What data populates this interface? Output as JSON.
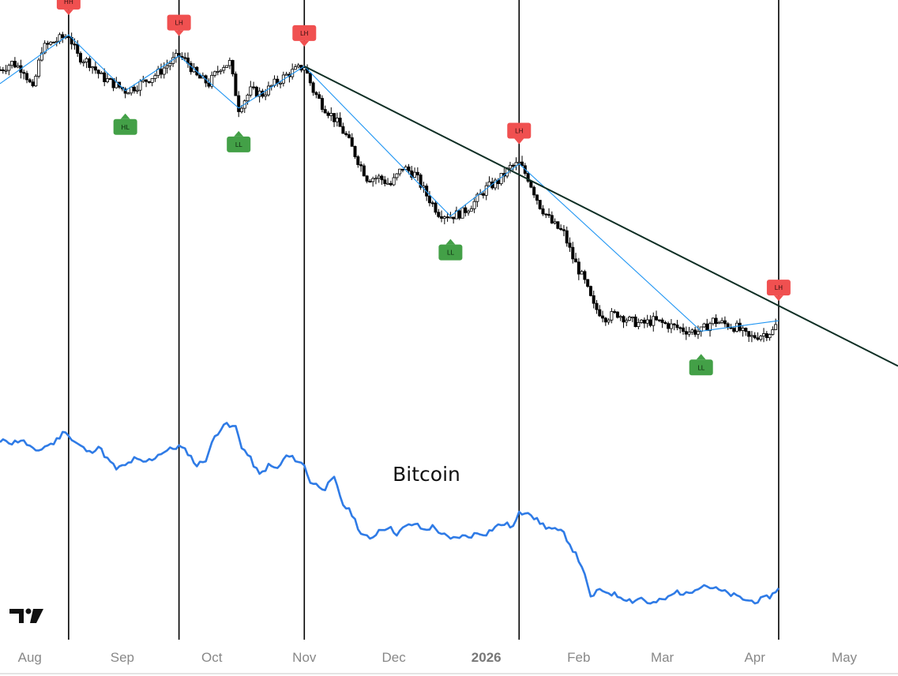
{
  "chart_data": {
    "type": "line",
    "x_axis": {
      "ticks": [
        {
          "label": "Aug",
          "date": "2025-08-01",
          "bold": false
        },
        {
          "label": "Sep",
          "date": "2025-09-01",
          "bold": false
        },
        {
          "label": "Oct",
          "date": "2025-10-01",
          "bold": false
        },
        {
          "label": "Nov",
          "date": "2025-11-01",
          "bold": false
        },
        {
          "label": "Dec",
          "date": "2025-12-01",
          "bold": false
        },
        {
          "label": "2026",
          "date": "2026-01-01",
          "bold": true
        },
        {
          "label": "Feb",
          "date": "2026-02-01",
          "bold": false
        },
        {
          "label": "Mar",
          "date": "2026-03-01",
          "bold": false
        },
        {
          "label": "Apr",
          "date": "2026-04-01",
          "bold": false
        },
        {
          "label": "May",
          "date": "2026-05-01",
          "bold": false
        }
      ],
      "range": [
        "2025-07-22",
        "2026-05-19"
      ]
    },
    "vertical_markers": [
      "2025-08-14",
      "2025-09-20",
      "2025-11-01",
      "2026-01-12",
      "2026-04-09"
    ],
    "upper_panel": {
      "candles_close": [
        [
          "2025-07-22",
          120
        ],
        [
          "2025-07-26",
          121
        ],
        [
          "2025-07-30",
          120
        ],
        [
          "2025-08-02",
          117
        ],
        [
          "2025-08-05",
          123
        ],
        [
          "2025-08-09",
          124
        ],
        [
          "2025-08-14",
          125
        ],
        [
          "2025-08-17",
          122
        ],
        [
          "2025-08-21",
          121
        ],
        [
          "2025-08-25",
          119
        ],
        [
          "2025-08-29",
          118
        ],
        [
          "2025-09-02",
          117
        ],
        [
          "2025-09-05",
          117.5
        ],
        [
          "2025-09-09",
          118.5
        ],
        [
          "2025-09-13",
          119.5
        ],
        [
          "2025-09-17",
          121
        ],
        [
          "2025-09-20",
          122
        ],
        [
          "2025-09-23",
          121
        ],
        [
          "2025-09-26",
          119
        ],
        [
          "2025-09-30",
          118
        ],
        [
          "2025-10-04",
          120.5
        ],
        [
          "2025-10-07",
          121
        ],
        [
          "2025-10-10",
          114.5
        ],
        [
          "2025-10-14",
          117
        ],
        [
          "2025-10-18",
          116.5
        ],
        [
          "2025-10-22",
          118
        ],
        [
          "2025-10-27",
          119.5
        ],
        [
          "2025-11-01",
          120.5
        ],
        [
          "2025-11-04",
          117
        ],
        [
          "2025-11-07",
          115
        ],
        [
          "2025-11-11",
          113
        ],
        [
          "2025-11-15",
          110.5
        ],
        [
          "2025-11-19",
          107
        ],
        [
          "2025-11-22",
          104.5
        ],
        [
          "2025-11-26",
          104.5
        ],
        [
          "2025-11-30",
          103.5
        ],
        [
          "2025-12-04",
          106
        ],
        [
          "2025-12-08",
          105
        ],
        [
          "2025-12-12",
          102
        ],
        [
          "2025-12-16",
          99.5
        ],
        [
          "2025-12-20",
          99
        ],
        [
          "2025-12-24",
          99.5
        ],
        [
          "2025-12-28",
          101
        ],
        [
          "2026-01-01",
          103
        ],
        [
          "2026-01-05",
          104
        ],
        [
          "2026-01-09",
          106
        ],
        [
          "2026-01-12",
          106.5
        ],
        [
          "2026-01-15",
          104.5
        ],
        [
          "2026-01-19",
          100.5
        ],
        [
          "2026-01-23",
          98
        ],
        [
          "2026-01-27",
          96.5
        ],
        [
          "2026-01-30",
          93
        ],
        [
          "2026-02-03",
          89.5
        ],
        [
          "2026-02-06",
          86
        ],
        [
          "2026-02-10",
          84.5
        ],
        [
          "2026-02-14",
          85
        ],
        [
          "2026-02-18",
          84
        ],
        [
          "2026-02-22",
          83.5
        ],
        [
          "2026-02-26",
          84
        ],
        [
          "2026-03-02",
          83.5
        ],
        [
          "2026-03-06",
          83
        ],
        [
          "2026-03-10",
          82.5
        ],
        [
          "2026-03-14",
          82.5
        ],
        [
          "2026-03-18",
          84
        ],
        [
          "2026-03-22",
          83.5
        ],
        [
          "2026-03-26",
          83
        ],
        [
          "2026-03-30",
          81.5
        ],
        [
          "2026-04-03",
          82
        ],
        [
          "2026-04-07",
          82.5
        ],
        [
          "2026-04-09",
          84
        ]
      ],
      "pivots": [
        {
          "label": "HH",
          "date": "2025-08-14",
          "value": 125,
          "kind": "high"
        },
        {
          "label": "HL",
          "date": "2025-09-02",
          "value": 117,
          "kind": "low"
        },
        {
          "label": "LH",
          "date": "2025-09-20",
          "value": 122,
          "kind": "high"
        },
        {
          "label": "LL",
          "date": "2025-10-10",
          "value": 114.5,
          "kind": "low"
        },
        {
          "label": "LH",
          "date": "2025-11-01",
          "value": 120.5,
          "kind": "high"
        },
        {
          "label": "LL",
          "date": "2025-12-20",
          "value": 99,
          "kind": "low"
        },
        {
          "label": "LH",
          "date": "2026-01-12",
          "value": 106.5,
          "kind": "high"
        },
        {
          "label": "LL",
          "date": "2026-03-14",
          "value": 82.5,
          "kind": "low"
        },
        {
          "label": "LH",
          "date": "2026-04-09",
          "value": 84,
          "kind": "high"
        }
      ],
      "trendline": {
        "from": [
          "2025-11-01",
          120.5
        ],
        "to": [
          "2026-05-19",
          77.5
        ]
      },
      "value_range": [
        72,
        130
      ]
    },
    "lower_panel": {
      "series_label": "Bitcoin",
      "points": [
        [
          "2025-07-22",
          116
        ],
        [
          "2025-07-24",
          117
        ],
        [
          "2025-07-26",
          116
        ],
        [
          "2025-07-29",
          117
        ],
        [
          "2025-08-01",
          115
        ],
        [
          "2025-08-03",
          113
        ],
        [
          "2025-08-06",
          115
        ],
        [
          "2025-08-09",
          116
        ],
        [
          "2025-08-11",
          118
        ],
        [
          "2025-08-13",
          120
        ],
        [
          "2025-08-15",
          117
        ],
        [
          "2025-08-18",
          115
        ],
        [
          "2025-08-21",
          113
        ],
        [
          "2025-08-24",
          115
        ],
        [
          "2025-08-27",
          111
        ],
        [
          "2025-08-30",
          108
        ],
        [
          "2025-09-02",
          109
        ],
        [
          "2025-09-05",
          111
        ],
        [
          "2025-09-08",
          110
        ],
        [
          "2025-09-11",
          111
        ],
        [
          "2025-09-14",
          113
        ],
        [
          "2025-09-17",
          114
        ],
        [
          "2025-09-20",
          115
        ],
        [
          "2025-09-23",
          113
        ],
        [
          "2025-09-26",
          109
        ],
        [
          "2025-09-29",
          111
        ],
        [
          "2025-10-02",
          118
        ],
        [
          "2025-10-05",
          122
        ],
        [
          "2025-10-07",
          121
        ],
        [
          "2025-10-09",
          121
        ],
        [
          "2025-10-11",
          115
        ],
        [
          "2025-10-14",
          111
        ],
        [
          "2025-10-17",
          106
        ],
        [
          "2025-10-20",
          109
        ],
        [
          "2025-10-23",
          108
        ],
        [
          "2025-10-26",
          112
        ],
        [
          "2025-10-29",
          111
        ],
        [
          "2025-11-01",
          109
        ],
        [
          "2025-11-03",
          104
        ],
        [
          "2025-11-05",
          103
        ],
        [
          "2025-11-08",
          102
        ],
        [
          "2025-11-11",
          105
        ],
        [
          "2025-11-14",
          97
        ],
        [
          "2025-11-17",
          94
        ],
        [
          "2025-11-20",
          88
        ],
        [
          "2025-11-23",
          86
        ],
        [
          "2025-11-26",
          89
        ],
        [
          "2025-11-29",
          90
        ],
        [
          "2025-12-02",
          88
        ],
        [
          "2025-12-05",
          90
        ],
        [
          "2025-12-08",
          91
        ],
        [
          "2025-12-11",
          89
        ],
        [
          "2025-12-14",
          90
        ],
        [
          "2025-12-17",
          88
        ],
        [
          "2025-12-20",
          86
        ],
        [
          "2025-12-23",
          87
        ],
        [
          "2025-12-26",
          87
        ],
        [
          "2025-12-29",
          88
        ],
        [
          "2026-01-01",
          88
        ],
        [
          "2026-01-04",
          90
        ],
        [
          "2026-01-07",
          91
        ],
        [
          "2026-01-10",
          90
        ],
        [
          "2026-01-12",
          94
        ],
        [
          "2026-01-15",
          95
        ],
        [
          "2026-01-18",
          92
        ],
        [
          "2026-01-21",
          90
        ],
        [
          "2026-01-24",
          89
        ],
        [
          "2026-01-27",
          88
        ],
        [
          "2026-01-30",
          83
        ],
        [
          "2026-02-02",
          78
        ],
        [
          "2026-02-05",
          68
        ],
        [
          "2026-02-07",
          70
        ],
        [
          "2026-02-10",
          70
        ],
        [
          "2026-02-13",
          69
        ],
        [
          "2026-02-16",
          68
        ],
        [
          "2026-02-19",
          67
        ],
        [
          "2026-02-22",
          68
        ],
        [
          "2026-02-25",
          66
        ],
        [
          "2026-02-28",
          67
        ],
        [
          "2026-03-03",
          68
        ],
        [
          "2026-03-06",
          70
        ],
        [
          "2026-03-09",
          69
        ],
        [
          "2026-03-12",
          71
        ],
        [
          "2026-03-15",
          72
        ],
        [
          "2026-03-18",
          71
        ],
        [
          "2026-03-21",
          70
        ],
        [
          "2026-03-24",
          69
        ],
        [
          "2026-03-27",
          68
        ],
        [
          "2026-03-30",
          67
        ],
        [
          "2026-04-02",
          67
        ],
        [
          "2026-04-05",
          68
        ],
        [
          "2026-04-07",
          69
        ],
        [
          "2026-04-09",
          71
        ]
      ],
      "value_range": [
        55,
        128
      ]
    },
    "colors": {
      "candle": "#000000",
      "zigzag": "#2196f3",
      "trendline": "#0f2f25",
      "marker_line": "#000000",
      "pivot_high": "#f05050",
      "pivot_low": "#43a047",
      "line": "#2f7be6",
      "axis_text": "#888888"
    },
    "logo_text": "TV"
  }
}
